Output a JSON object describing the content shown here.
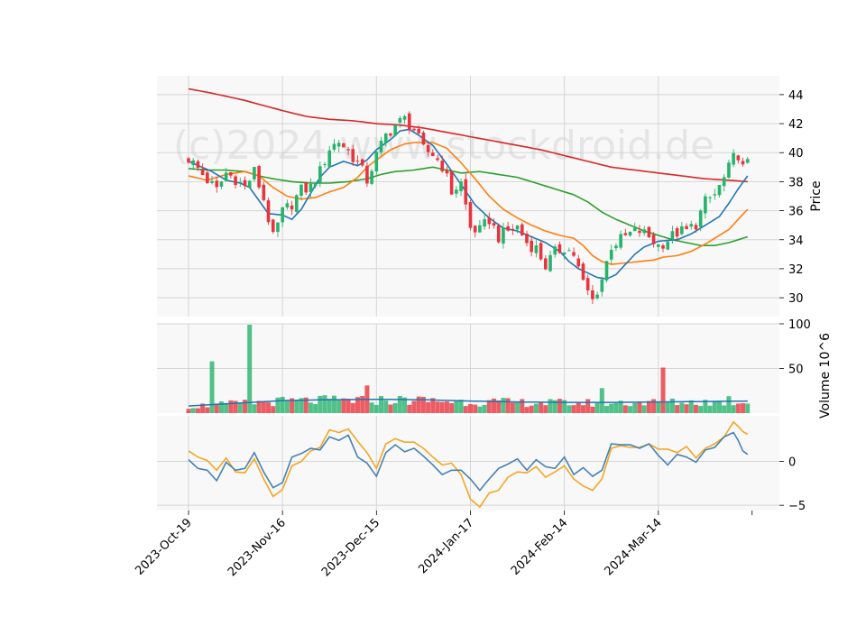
{
  "chart_data": {
    "type": "candlestick",
    "watermark": "(c)2024 www.stockdroid.de",
    "colors": {
      "up": "#26b36b",
      "down": "#e8343d",
      "ma_short": "#1f77b4",
      "ma_mid": "#ff7f0e",
      "ma_long": "#2ca02c",
      "ma_200": "#d62728",
      "volume_avg": "#1f77b4",
      "osc_fast": "#4682b4",
      "osc_slow": "#f5a623",
      "panel_bg": "#f8f8f8",
      "grid": "#d5d5d5"
    },
    "x_ticks": [
      "2023-Oct-19",
      "2023-Nov-16",
      "2023-Dec-15",
      "2024-Jan-17",
      "2024-Feb-14",
      "2024-Mar-14"
    ],
    "x_tick_index": [
      0,
      20,
      40,
      60,
      80,
      100
    ],
    "price_panel": {
      "ylabel": "Price",
      "ylim": [
        28.7,
        45.3
      ],
      "yticks": [
        30,
        32,
        34,
        36,
        38,
        40,
        42,
        44
      ],
      "ma_short_anchors": [
        [
          0,
          39.4
        ],
        [
          5,
          38.7
        ],
        [
          8,
          38.1
        ],
        [
          11,
          37.9
        ],
        [
          13,
          37.6
        ],
        [
          15,
          36.7
        ],
        [
          17,
          35.8
        ],
        [
          20,
          35.7
        ],
        [
          22,
          35.4
        ],
        [
          24,
          36.1
        ],
        [
          26,
          37.2
        ],
        [
          28,
          38.3
        ],
        [
          30,
          39.0
        ],
        [
          33,
          39.4
        ],
        [
          36,
          39.1
        ],
        [
          38,
          39.5
        ],
        [
          40,
          40.2
        ],
        [
          43,
          40.9
        ],
        [
          45,
          41.5
        ],
        [
          47,
          41.6
        ],
        [
          49,
          41.2
        ],
        [
          52,
          40.5
        ],
        [
          55,
          39.2
        ],
        [
          58,
          37.8
        ],
        [
          61,
          36.4
        ],
        [
          64,
          35.5
        ],
        [
          67,
          34.8
        ],
        [
          70,
          34.6
        ],
        [
          73,
          34.2
        ],
        [
          76,
          33.8
        ],
        [
          79,
          33.2
        ],
        [
          81,
          32.5
        ],
        [
          83,
          32.0
        ],
        [
          85,
          31.7
        ],
        [
          87,
          31.4
        ],
        [
          89,
          31.3
        ],
        [
          91,
          31.6
        ],
        [
          93,
          32.3
        ],
        [
          95,
          33.0
        ],
        [
          97,
          33.5
        ],
        [
          100,
          33.9
        ],
        [
          104,
          34.0
        ],
        [
          107,
          34.4
        ],
        [
          110,
          35.0
        ],
        [
          113,
          35.6
        ],
        [
          115,
          36.5
        ],
        [
          117,
          37.5
        ],
        [
          119,
          38.4
        ]
      ],
      "ma_mid_anchors": [
        [
          0,
          38.4
        ],
        [
          4,
          38.1
        ],
        [
          8,
          38.5
        ],
        [
          12,
          38.7
        ],
        [
          15,
          38.4
        ],
        [
          18,
          37.6
        ],
        [
          21,
          37.0
        ],
        [
          24,
          36.8
        ],
        [
          27,
          36.9
        ],
        [
          30,
          37.3
        ],
        [
          33,
          37.6
        ],
        [
          36,
          38.3
        ],
        [
          38,
          39.0
        ],
        [
          40,
          39.5
        ],
        [
          43,
          40.2
        ],
        [
          46,
          40.6
        ],
        [
          48,
          40.7
        ],
        [
          52,
          40.7
        ],
        [
          55,
          40.3
        ],
        [
          58,
          39.3
        ],
        [
          61,
          38.2
        ],
        [
          64,
          37.0
        ],
        [
          67,
          36.1
        ],
        [
          70,
          35.5
        ],
        [
          73,
          35.0
        ],
        [
          76,
          34.6
        ],
        [
          79,
          34.3
        ],
        [
          82,
          34.1
        ],
        [
          84,
          33.6
        ],
        [
          86,
          32.9
        ],
        [
          88,
          32.5
        ],
        [
          90,
          32.3
        ],
        [
          93,
          32.4
        ],
        [
          96,
          32.5
        ],
        [
          99,
          32.6
        ],
        [
          101,
          32.8
        ],
        [
          104,
          32.9
        ],
        [
          107,
          33.2
        ],
        [
          110,
          33.7
        ],
        [
          113,
          34.3
        ],
        [
          115,
          34.7
        ],
        [
          117,
          35.4
        ],
        [
          119,
          36.1
        ]
      ],
      "ma_long_anchors": [
        [
          0,
          38.9
        ],
        [
          4,
          38.8
        ],
        [
          8,
          38.8
        ],
        [
          12,
          38.7
        ],
        [
          15,
          38.4
        ],
        [
          18,
          38.2
        ],
        [
          22,
          38.0
        ],
        [
          26,
          37.9
        ],
        [
          30,
          37.9
        ],
        [
          34,
          38.0
        ],
        [
          38,
          38.2
        ],
        [
          41,
          38.5
        ],
        [
          44,
          38.7
        ],
        [
          48,
          38.8
        ],
        [
          52,
          39.0
        ],
        [
          55,
          38.8
        ],
        [
          58,
          38.6
        ],
        [
          62,
          38.7
        ],
        [
          66,
          38.5
        ],
        [
          70,
          38.3
        ],
        [
          74,
          37.9
        ],
        [
          78,
          37.5
        ],
        [
          82,
          37.1
        ],
        [
          85,
          36.6
        ],
        [
          88,
          35.9
        ],
        [
          91,
          35.4
        ],
        [
          94,
          35.0
        ],
        [
          97,
          34.6
        ],
        [
          100,
          34.3
        ],
        [
          103,
          34.0
        ],
        [
          106,
          33.8
        ],
        [
          109,
          33.6
        ],
        [
          112,
          33.6
        ],
        [
          115,
          33.8
        ],
        [
          117,
          34.0
        ],
        [
          119,
          34.2
        ]
      ],
      "ma_200_anchors": [
        [
          0,
          44.4
        ],
        [
          5,
          44.1
        ],
        [
          12,
          43.6
        ],
        [
          20,
          42.9
        ],
        [
          25,
          42.5
        ],
        [
          30,
          42.3
        ],
        [
          35,
          42.2
        ],
        [
          40,
          42.0
        ],
        [
          45,
          41.9
        ],
        [
          50,
          41.7
        ],
        [
          55,
          41.4
        ],
        [
          60,
          41.1
        ],
        [
          65,
          40.8
        ],
        [
          70,
          40.5
        ],
        [
          75,
          40.2
        ],
        [
          80,
          39.8
        ],
        [
          85,
          39.4
        ],
        [
          90,
          39.0
        ],
        [
          95,
          38.8
        ],
        [
          100,
          38.6
        ],
        [
          105,
          38.4
        ],
        [
          110,
          38.2
        ],
        [
          115,
          38.1
        ],
        [
          119,
          38.0
        ]
      ],
      "ohlc_anchors": [
        [
          0,
          39.6
        ],
        [
          2,
          38.9
        ],
        [
          4,
          38.1
        ],
        [
          6,
          37.4
        ],
        [
          8,
          38.6
        ],
        [
          10,
          38.2
        ],
        [
          12,
          37.6
        ],
        [
          14,
          38.7
        ],
        [
          16,
          36.8
        ],
        [
          18,
          34.1
        ],
        [
          20,
          35.9
        ],
        [
          22,
          36.5
        ],
        [
          24,
          37.4
        ],
        [
          26,
          37.6
        ],
        [
          28,
          38.7
        ],
        [
          30,
          40.3
        ],
        [
          32,
          40.8
        ],
        [
          34,
          40.1
        ],
        [
          36,
          39.3
        ],
        [
          38,
          38.1
        ],
        [
          40,
          39.8
        ],
        [
          42,
          41.2
        ],
        [
          44,
          41.9
        ],
        [
          46,
          42.3
        ],
        [
          48,
          41.6
        ],
        [
          50,
          40.2
        ],
        [
          52,
          39.9
        ],
        [
          54,
          39.1
        ],
        [
          56,
          37.3
        ],
        [
          58,
          37.9
        ],
        [
          60,
          34.8
        ],
        [
          62,
          34.6
        ],
        [
          64,
          35.4
        ],
        [
          66,
          34.2
        ],
        [
          68,
          34.6
        ],
        [
          70,
          34.9
        ],
        [
          72,
          33.8
        ],
        [
          74,
          33.4
        ],
        [
          76,
          32.2
        ],
        [
          78,
          33.1
        ],
        [
          80,
          33.5
        ],
        [
          82,
          33.0
        ],
        [
          84,
          31.0
        ],
        [
          86,
          29.8
        ],
        [
          88,
          31.3
        ],
        [
          90,
          33.6
        ],
        [
          92,
          34.0
        ],
        [
          94,
          34.4
        ],
        [
          96,
          34.6
        ],
        [
          98,
          34.2
        ],
        [
          100,
          33.6
        ],
        [
          102,
          34.0
        ],
        [
          104,
          34.5
        ],
        [
          106,
          34.6
        ],
        [
          108,
          35.1
        ],
        [
          110,
          36.6
        ],
        [
          112,
          37.1
        ],
        [
          114,
          38.2
        ],
        [
          116,
          39.6
        ],
        [
          117,
          39.9
        ],
        [
          118,
          38.9
        ],
        [
          119,
          39.2
        ]
      ]
    },
    "volume_panel": {
      "ylabel": "Volume  10^6",
      "ylim": [
        0,
        100
      ],
      "yticks": [
        50,
        100
      ],
      "volume_avg_anchors": [
        [
          0,
          8
        ],
        [
          10,
          11
        ],
        [
          20,
          14
        ],
        [
          30,
          15
        ],
        [
          40,
          15.5
        ],
        [
          50,
          15
        ],
        [
          60,
          13.5
        ],
        [
          70,
          12.5
        ],
        [
          80,
          12
        ],
        [
          90,
          12
        ],
        [
          100,
          12.5
        ],
        [
          110,
          13
        ],
        [
          119,
          13.5
        ]
      ],
      "spikes": [
        [
          5,
          58
        ],
        [
          13,
          99
        ],
        [
          38,
          31
        ],
        [
          88,
          28
        ],
        [
          101,
          51
        ],
        [
          115,
          19
        ]
      ]
    },
    "osc_panel": {
      "ylim": [
        -5.6,
        5.2
      ],
      "yticks": [
        -5,
        0
      ],
      "fast_anchors": [
        [
          0,
          0.2
        ],
        [
          2,
          -0.8
        ],
        [
          4,
          -1.0
        ],
        [
          6,
          -2.2
        ],
        [
          8,
          -0.1
        ],
        [
          10,
          -1.0
        ],
        [
          12,
          -0.8
        ],
        [
          14,
          1.0
        ],
        [
          16,
          -1.2
        ],
        [
          18,
          -3.0
        ],
        [
          20,
          -2.4
        ],
        [
          22,
          0.5
        ],
        [
          24,
          0.9
        ],
        [
          26,
          1.5
        ],
        [
          28,
          1.3
        ],
        [
          30,
          2.8
        ],
        [
          32,
          2.4
        ],
        [
          34,
          3.0
        ],
        [
          36,
          0.5
        ],
        [
          38,
          -0.2
        ],
        [
          40,
          -1.7
        ],
        [
          42,
          1.0
        ],
        [
          44,
          1.9
        ],
        [
          46,
          1.1
        ],
        [
          48,
          1.5
        ],
        [
          50,
          0.6
        ],
        [
          52,
          -0.4
        ],
        [
          54,
          -1.5
        ],
        [
          56,
          -1.0
        ],
        [
          58,
          -1.0
        ],
        [
          60,
          -2.0
        ],
        [
          62,
          -3.3
        ],
        [
          64,
          -2.0
        ],
        [
          66,
          -0.8
        ],
        [
          68,
          -0.3
        ],
        [
          70,
          0.3
        ],
        [
          72,
          -1.0
        ],
        [
          74,
          0.2
        ],
        [
          76,
          -0.6
        ],
        [
          78,
          -0.8
        ],
        [
          80,
          0.5
        ],
        [
          82,
          -1.5
        ],
        [
          84,
          -0.7
        ],
        [
          86,
          -1.7
        ],
        [
          88,
          -1.0
        ],
        [
          90,
          2.0
        ],
        [
          92,
          1.9
        ],
        [
          94,
          1.9
        ],
        [
          96,
          1.5
        ],
        [
          98,
          2.0
        ],
        [
          100,
          0.7
        ],
        [
          102,
          -0.4
        ],
        [
          104,
          0.8
        ],
        [
          106,
          0.5
        ],
        [
          108,
          -0.1
        ],
        [
          110,
          1.3
        ],
        [
          112,
          1.6
        ],
        [
          114,
          2.8
        ],
        [
          116,
          3.3
        ],
        [
          117,
          2.4
        ],
        [
          118,
          1.2
        ],
        [
          119,
          0.8
        ]
      ],
      "slow_anchors": [
        [
          0,
          1.2
        ],
        [
          2,
          0.5
        ],
        [
          4,
          0.1
        ],
        [
          6,
          -1.0
        ],
        [
          8,
          0.4
        ],
        [
          10,
          -1.2
        ],
        [
          12,
          -1.3
        ],
        [
          14,
          0.3
        ],
        [
          16,
          -2.0
        ],
        [
          18,
          -4.0
        ],
        [
          20,
          -3.2
        ],
        [
          22,
          -0.5
        ],
        [
          24,
          0.0
        ],
        [
          26,
          1.2
        ],
        [
          28,
          1.6
        ],
        [
          30,
          3.6
        ],
        [
          32,
          3.3
        ],
        [
          34,
          3.7
        ],
        [
          36,
          2.3
        ],
        [
          38,
          1.0
        ],
        [
          40,
          -0.8
        ],
        [
          42,
          2.0
        ],
        [
          44,
          2.6
        ],
        [
          46,
          2.2
        ],
        [
          48,
          2.2
        ],
        [
          50,
          1.5
        ],
        [
          52,
          0.5
        ],
        [
          54,
          -0.4
        ],
        [
          56,
          -0.2
        ],
        [
          58,
          -1.5
        ],
        [
          60,
          -4.3
        ],
        [
          62,
          -5.2
        ],
        [
          64,
          -3.6
        ],
        [
          66,
          -3.3
        ],
        [
          68,
          -1.8
        ],
        [
          70,
          -1.2
        ],
        [
          72,
          -1.3
        ],
        [
          74,
          -0.6
        ],
        [
          76,
          -1.8
        ],
        [
          78,
          -1.2
        ],
        [
          80,
          -0.5
        ],
        [
          82,
          -2.0
        ],
        [
          84,
          -2.8
        ],
        [
          86,
          -3.3
        ],
        [
          88,
          -2.0
        ],
        [
          90,
          1.5
        ],
        [
          92,
          1.8
        ],
        [
          94,
          1.6
        ],
        [
          96,
          1.6
        ],
        [
          98,
          2.0
        ],
        [
          100,
          1.4
        ],
        [
          102,
          1.4
        ],
        [
          104,
          1.0
        ],
        [
          106,
          1.7
        ],
        [
          108,
          0.4
        ],
        [
          110,
          1.5
        ],
        [
          112,
          2.0
        ],
        [
          114,
          2.8
        ],
        [
          116,
          4.5
        ],
        [
          117,
          4.0
        ],
        [
          118,
          3.4
        ],
        [
          119,
          3.1
        ]
      ]
    }
  }
}
